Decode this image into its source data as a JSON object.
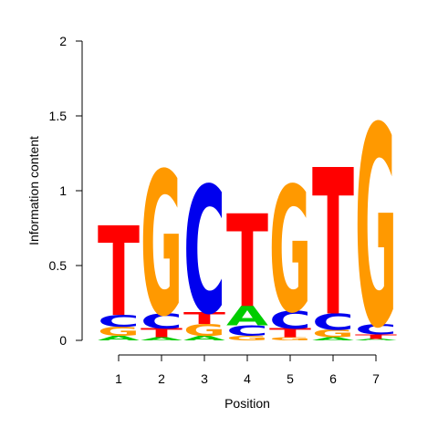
{
  "chart_data": {
    "type": "sequence-logo",
    "xlabel": "Position",
    "ylabel": "Information content",
    "ylim": [
      0,
      2
    ],
    "yticks": [
      {
        "value": 0,
        "label": "0"
      },
      {
        "value": 0.5,
        "label": "0.5"
      },
      {
        "value": 1,
        "label": "1"
      },
      {
        "value": 1.5,
        "label": "1.5"
      },
      {
        "value": 2,
        "label": "2"
      }
    ],
    "xticks": [
      "1",
      "2",
      "3",
      "4",
      "5",
      "6",
      "7"
    ],
    "colors": {
      "A": "#00cc00",
      "C": "#0000ee",
      "G": "#ff9900",
      "T": "#ff0000"
    },
    "positions": [
      {
        "position": "1",
        "stack": [
          {
            "letter": "A",
            "height": 0.03
          },
          {
            "letter": "G",
            "height": 0.06
          },
          {
            "letter": "C",
            "height": 0.08
          },
          {
            "letter": "T",
            "height": 0.6
          }
        ]
      },
      {
        "position": "2",
        "stack": [
          {
            "letter": "A",
            "height": 0.02
          },
          {
            "letter": "T",
            "height": 0.06
          },
          {
            "letter": "C",
            "height": 0.1
          },
          {
            "letter": "G",
            "height": 0.96
          }
        ]
      },
      {
        "position": "3",
        "stack": [
          {
            "letter": "A",
            "height": 0.03
          },
          {
            "letter": "G",
            "height": 0.08
          },
          {
            "letter": "T",
            "height": 0.08
          },
          {
            "letter": "C",
            "height": 0.85
          }
        ]
      },
      {
        "position": "4",
        "stack": [
          {
            "letter": "G",
            "height": 0.03
          },
          {
            "letter": "C",
            "height": 0.07
          },
          {
            "letter": "A",
            "height": 0.13
          },
          {
            "letter": "T",
            "height": 0.62
          }
        ]
      },
      {
        "position": "5",
        "stack": [
          {
            "letter": "G",
            "height": 0.02
          },
          {
            "letter": "T",
            "height": 0.06
          },
          {
            "letter": "C",
            "height": 0.12
          },
          {
            "letter": "G",
            "height": 0.84
          }
        ]
      },
      {
        "position": "6",
        "stack": [
          {
            "letter": "A",
            "height": 0.02
          },
          {
            "letter": "G",
            "height": 0.05
          },
          {
            "letter": "C",
            "height": 0.11
          },
          {
            "letter": "T",
            "height": 0.98
          }
        ]
      },
      {
        "position": "7",
        "stack": [
          {
            "letter": "A",
            "height": 0.01
          },
          {
            "letter": "T",
            "height": 0.03
          },
          {
            "letter": "C",
            "height": 0.07
          },
          {
            "letter": "G",
            "height": 1.34
          }
        ]
      }
    ]
  }
}
